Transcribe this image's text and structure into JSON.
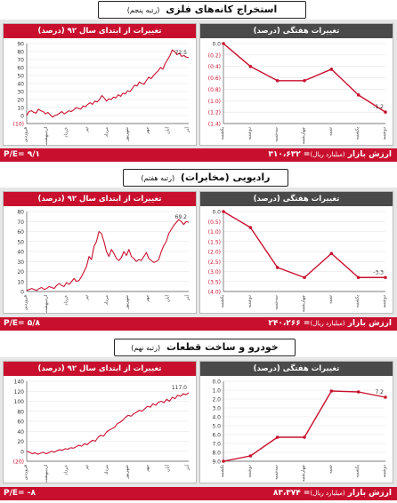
{
  "colors": {
    "accent": "#c8102e",
    "dark": "#4a4a4a",
    "band": "#e6e6e6"
  },
  "market_cap_unit": "(میلیارد ریال)",
  "sections": [
    {
      "title": "استخراج کانه‌های فلزی",
      "rank": "(رتبه پنجم)",
      "footer_left": "P/E= ۹/۱",
      "footer_right": "ارزش بازار",
      "footer_value": "= ۳۱۰،۶۳۲"
    },
    {
      "title": "رادیویی (مخابرات)",
      "rank": "(رتبه هفتم)",
      "footer_left": "P/E= ۵/۸",
      "footer_right": "ارزش بازار",
      "footer_value": "= ۲۴۰،۲۶۶"
    },
    {
      "title": "خودرو و ساخت قطعات",
      "rank": "(رتبه نهم)",
      "footer_left": "P/E= -۸",
      "footer_right": "ارزش بازار",
      "footer_value": "= ۸۳،۳۷۴"
    }
  ],
  "chart_data": [
    {
      "type": "line",
      "title": "تغییرات از ابتدای سال ۹۲ (درصد)",
      "ylim": [
        -10,
        90
      ],
      "yticks": [
        "(10)",
        "0",
        "10",
        "20",
        "30",
        "40",
        "50",
        "60",
        "70",
        "80",
        "90"
      ],
      "xticks": [
        "فروردین",
        "اردیبهشت",
        "خرداد",
        "تیر",
        "مرداد",
        "شهریور",
        "مهر",
        "آبان",
        "آذر"
      ],
      "end_label": "72.5",
      "y": [
        0,
        5,
        6,
        4,
        3,
        8,
        6,
        5,
        2,
        4,
        1,
        -2,
        0,
        1,
        3,
        5,
        2,
        4,
        6,
        5,
        7,
        10,
        9,
        8,
        12,
        11,
        14,
        16,
        14,
        18,
        17,
        20,
        25,
        22,
        18,
        21,
        20,
        23,
        22,
        26,
        24,
        28,
        27,
        31,
        30,
        34,
        38,
        37,
        42,
        40,
        39,
        44,
        48,
        46,
        50,
        53,
        56,
        60,
        58,
        65,
        70,
        75,
        82,
        80,
        76,
        78,
        74,
        75,
        73,
        72.5
      ]
    },
    {
      "type": "line",
      "title": "تغییرات هفتگی (درصد)",
      "ylim": [
        -1.4,
        0
      ],
      "yticks": [
        "0.0",
        "(0.2)",
        "(0.4)",
        "(0.6)",
        "(0.8)",
        "(1.0)",
        "(1.2)",
        "(1.4)"
      ],
      "xticks": [
        "یکشنبه",
        "دوشنبه",
        "سه‌شنبه",
        "چهارشنبه",
        "شنبه",
        "یکشنبه",
        "دوشنبه"
      ],
      "end_label": "-1.2",
      "y": [
        0,
        -0.4,
        -0.65,
        -0.65,
        -0.45,
        -0.9,
        -1.2
      ]
    },
    {
      "type": "line",
      "title": "تغییرات از ابتدای سال ۹۲ (درصد)",
      "ylim": [
        0,
        80
      ],
      "yticks": [
        "0",
        "10",
        "20",
        "30",
        "40",
        "50",
        "60",
        "70",
        "80"
      ],
      "xticks": [
        "فروردین",
        "اردیبهشت",
        "خرداد",
        "تیر",
        "مرداد",
        "شهریور",
        "مهر",
        "آبان",
        "آذر"
      ],
      "end_label": "69.2",
      "y": [
        1,
        2,
        3,
        2,
        1,
        3,
        4,
        2,
        3,
        5,
        4,
        3,
        6,
        8,
        6,
        5,
        9,
        7,
        10,
        13,
        10,
        11,
        15,
        20,
        25,
        35,
        32,
        45,
        50,
        60,
        58,
        50,
        40,
        35,
        42,
        38,
        33,
        31,
        34,
        40,
        36,
        42,
        35,
        33,
        30,
        32,
        31,
        35,
        39,
        33,
        31,
        29,
        30,
        32,
        40,
        46,
        50,
        58,
        62,
        66,
        69,
        72,
        70,
        67,
        70,
        69.2
      ]
    },
    {
      "type": "line",
      "title": "تغییرات هفتگی (درصد)",
      "ylim": [
        -4,
        0
      ],
      "yticks": [
        "0.0",
        "(0.5)",
        "(1.0)",
        "(1.5)",
        "(2.0)",
        "(2.5)",
        "(3.0)",
        "(3.5)",
        "(4.0)"
      ],
      "xticks": [
        "یکشنبه",
        "دوشنبه",
        "سه‌شنبه",
        "چهارشنبه",
        "شنبه",
        "یکشنبه",
        "دوشنبه"
      ],
      "end_label": "-3.3",
      "y": [
        0,
        -0.8,
        -2.8,
        -3.3,
        -2.1,
        -3.3,
        -3.3
      ]
    },
    {
      "type": "line",
      "title": "تغییرات از ابتدای سال ۹۲ (درصد)",
      "ylim": [
        -20,
        140
      ],
      "yticks": [
        "(20)",
        "0",
        "20",
        "40",
        "60",
        "80",
        "100",
        "120",
        "140"
      ],
      "xticks": [
        "فروردین",
        "اردیبهشت",
        "خرداد",
        "تیر",
        "مرداد",
        "شهریور",
        "مهر",
        "آبان",
        "آذر"
      ],
      "end_label": "117.0",
      "y": [
        0,
        -2,
        -5,
        -3,
        -6,
        -4,
        -2,
        -5,
        -3,
        0,
        -2,
        1,
        3,
        2,
        5,
        4,
        7,
        6,
        9,
        12,
        10,
        15,
        13,
        18,
        22,
        20,
        28,
        32,
        30,
        38,
        42,
        45,
        48,
        55,
        58,
        62,
        68,
        72,
        70,
        75,
        78,
        82,
        80,
        85,
        90,
        88,
        95,
        92,
        98,
        100,
        97,
        104,
        100,
        108,
        105,
        112,
        110,
        115,
        113,
        117
      ]
    },
    {
      "type": "line",
      "title": "تغییرات هفتگی (درصد)",
      "ylim": [
        0,
        9
      ],
      "yticks": [
        "0.0",
        "1.0",
        "2.0",
        "3.0",
        "4.0",
        "5.0",
        "6.0",
        "7.0",
        "8.0",
        "9.0"
      ],
      "xticks": [
        "یکشنبه",
        "دوشنبه",
        "سه‌شنبه",
        "چهارشنبه",
        "شنبه",
        "یکشنبه",
        "دوشنبه"
      ],
      "end_label": "7.2",
      "y": [
        0,
        0.6,
        2.7,
        2.7,
        7.9,
        7.8,
        7.2
      ]
    }
  ]
}
